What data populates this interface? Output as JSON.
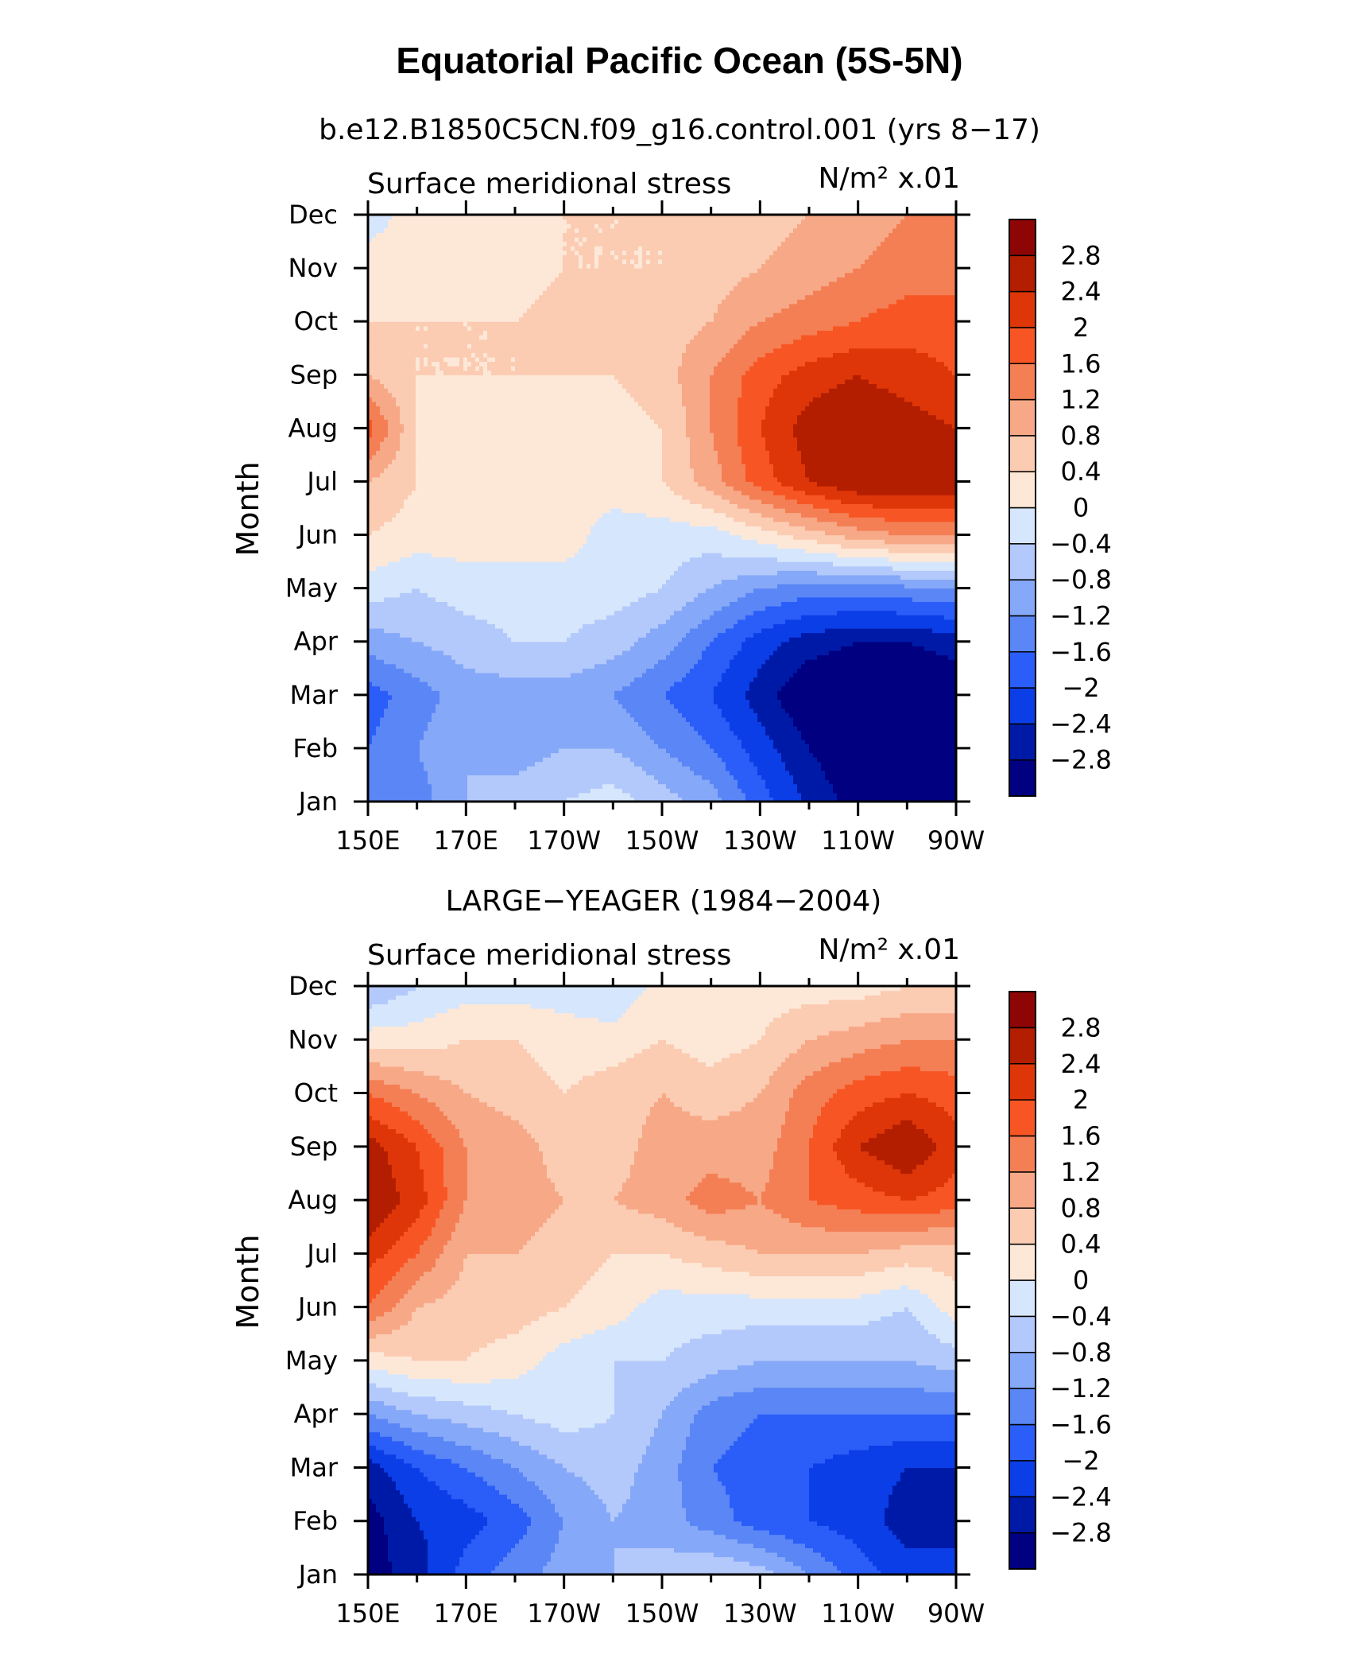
{
  "figure": {
    "title": "Equatorial Pacific Ocean (5S-5N)"
  },
  "colors": {
    "levels": [
      "#000080",
      "#001aa8",
      "#0b3ee6",
      "#2b5df8",
      "#5a86f6",
      "#86a8f8",
      "#b3c9fb",
      "#d6e6fc",
      "#fde8d8",
      "#fbcbb2",
      "#f7a887",
      "#f47f55",
      "#f75624",
      "#de3608",
      "#b41e00",
      "#8e0505"
    ],
    "axes": "#000000"
  },
  "chart_data": [
    {
      "type": "heatmap",
      "subtitle": "b.e12.B1850C5CN.f09_g16.control.001 (yrs 8−17)",
      "panel_label": "Surface meridional stress",
      "units": "N/m² x.01",
      "xlabel": "",
      "ylabel": "Month",
      "x_ticks": [
        "150E",
        "170E",
        "170W",
        "150W",
        "130W",
        "110W",
        "90W"
      ],
      "y_ticks": [
        "Jan",
        "Feb",
        "Mar",
        "Apr",
        "May",
        "Jun",
        "Jul",
        "Aug",
        "Sep",
        "Oct",
        "Nov",
        "Dec"
      ],
      "xlim": [
        "150E",
        "90W"
      ],
      "colorbar_levels": [
        "2.8",
        "2.4",
        "2",
        "1.6",
        "1.2",
        "0.8",
        "0.4",
        "0",
        "−0.4",
        "−0.8",
        "−1.2",
        "−1.6",
        "−2",
        "−2.4",
        "−2.8"
      ],
      "lon_columns": [
        150,
        160,
        170,
        180,
        190,
        200,
        210,
        220,
        230,
        240,
        250,
        260,
        270
      ],
      "values": [
        [
          -1.2,
          -1.4,
          -0.8,
          -0.6,
          -0.4,
          -0.2,
          -0.6,
          -1.0,
          -1.8,
          -2.5,
          -3.0,
          -3.0,
          -3.0
        ],
        [
          -1.6,
          -1.2,
          -0.8,
          -1.0,
          -0.8,
          -0.8,
          -1.2,
          -1.6,
          -2.2,
          -2.8,
          -3.2,
          -3.3,
          -3.2
        ],
        [
          -1.8,
          -1.4,
          -1.0,
          -1.0,
          -1.0,
          -1.2,
          -1.6,
          -2.0,
          -2.6,
          -3.2,
          -3.4,
          -3.4,
          -3.2
        ],
        [
          -1.0,
          -0.8,
          -0.6,
          -0.4,
          -0.4,
          -0.6,
          -1.0,
          -1.6,
          -2.2,
          -2.6,
          -2.8,
          -2.8,
          -2.6
        ],
        [
          -0.2,
          -0.4,
          -0.2,
          -0.2,
          -0.2,
          -0.2,
          -0.4,
          -0.8,
          -1.2,
          -1.4,
          -1.4,
          -1.3,
          -1.2
        ],
        [
          0.4,
          0.2,
          0.2,
          0.2,
          0.2,
          -0.2,
          -0.2,
          -0.2,
          0.2,
          0.6,
          1.0,
          1.2,
          1.2
        ],
        [
          0.8,
          0.4,
          0.2,
          0.2,
          0.2,
          0.2,
          0.4,
          1.0,
          1.8,
          2.4,
          2.8,
          2.8,
          2.8
        ],
        [
          1.8,
          0.4,
          0.2,
          0.3,
          0.2,
          0.2,
          0.4,
          1.2,
          2.0,
          2.6,
          2.8,
          2.6,
          2.4
        ],
        [
          0.8,
          0.4,
          0.4,
          0.4,
          0.4,
          0.4,
          0.6,
          1.2,
          1.8,
          2.2,
          2.4,
          2.2,
          2.0
        ],
        [
          0.4,
          0.4,
          0.4,
          0.4,
          0.6,
          0.6,
          0.6,
          0.8,
          1.2,
          1.4,
          1.6,
          1.8,
          1.8
        ],
        [
          0.2,
          0.2,
          0.2,
          0.2,
          0.4,
          0.4,
          0.4,
          0.6,
          0.8,
          1.0,
          1.2,
          1.4,
          1.4
        ],
        [
          -0.2,
          0.2,
          0.2,
          0.2,
          0.4,
          0.4,
          0.4,
          0.4,
          0.6,
          0.8,
          1.0,
          1.2,
          1.2
        ]
      ]
    },
    {
      "type": "heatmap",
      "subtitle": "LARGE−YEAGER (1984−2004)",
      "panel_label": "Surface meridional stress",
      "units": "N/m² x.01",
      "xlabel": "",
      "ylabel": "Month",
      "x_ticks": [
        "150E",
        "170E",
        "170W",
        "150W",
        "130W",
        "110W",
        "90W"
      ],
      "y_ticks": [
        "Jan",
        "Feb",
        "Mar",
        "Apr",
        "May",
        "Jun",
        "Jul",
        "Aug",
        "Sep",
        "Oct",
        "Nov",
        "Dec"
      ],
      "xlim": [
        "150E",
        "90W"
      ],
      "colorbar_levels": [
        "2.8",
        "2.4",
        "2",
        "1.6",
        "1.2",
        "0.8",
        "0.4",
        "0",
        "−0.4",
        "−0.8",
        "−1.2",
        "−1.6",
        "−2",
        "−2.4",
        "−2.8"
      ],
      "lon_columns": [
        150,
        160,
        170,
        180,
        190,
        200,
        210,
        220,
        230,
        240,
        250,
        260,
        270
      ],
      "values": [
        [
          -3.0,
          -2.6,
          -1.8,
          -1.4,
          -1.0,
          -0.8,
          -0.6,
          -0.4,
          -0.6,
          -1.2,
          -1.8,
          -2.2,
          -2.2
        ],
        [
          -3.0,
          -2.4,
          -2.2,
          -1.8,
          -1.2,
          -0.8,
          -1.0,
          -1.4,
          -1.8,
          -2.0,
          -2.2,
          -2.6,
          -2.6
        ],
        [
          -2.6,
          -2.0,
          -1.6,
          -1.2,
          -0.8,
          -0.6,
          -1.0,
          -1.6,
          -1.8,
          -2.0,
          -2.2,
          -2.4,
          -2.4
        ],
        [
          -1.2,
          -0.8,
          -0.6,
          -0.4,
          -0.2,
          -0.4,
          -0.8,
          -1.4,
          -1.6,
          -1.6,
          -1.6,
          -1.6,
          -1.6
        ],
        [
          0.2,
          0.4,
          0.4,
          0.2,
          -0.2,
          -0.4,
          -0.4,
          -0.6,
          -0.8,
          -0.8,
          -0.8,
          -0.8,
          -0.6
        ],
        [
          1.6,
          0.8,
          0.6,
          0.6,
          0.4,
          0.2,
          -0.2,
          -0.2,
          -0.2,
          -0.2,
          -0.2,
          -0.4,
          0.2
        ],
        [
          2.2,
          1.6,
          0.8,
          0.8,
          0.6,
          0.4,
          0.4,
          0.6,
          0.8,
          0.8,
          0.8,
          0.6,
          0.6
        ],
        [
          2.8,
          2.2,
          1.2,
          1.0,
          0.8,
          0.8,
          1.0,
          1.4,
          1.2,
          1.6,
          1.8,
          2.0,
          1.8
        ],
        [
          2.6,
          2.0,
          1.2,
          1.0,
          0.6,
          0.6,
          1.0,
          1.0,
          1.0,
          1.6,
          2.4,
          2.8,
          2.2
        ],
        [
          1.6,
          1.2,
          0.8,
          0.6,
          0.4,
          0.6,
          0.8,
          0.6,
          0.8,
          1.4,
          1.8,
          2.0,
          1.8
        ],
        [
          0.2,
          0.2,
          0.4,
          0.4,
          0.2,
          0.2,
          0.4,
          0.2,
          0.4,
          0.8,
          1.0,
          1.2,
          1.2
        ],
        [
          -0.8,
          -0.4,
          -0.2,
          -0.2,
          -0.2,
          -0.4,
          0.2,
          0.2,
          0.2,
          0.2,
          0.2,
          0.4,
          0.4
        ]
      ]
    }
  ]
}
